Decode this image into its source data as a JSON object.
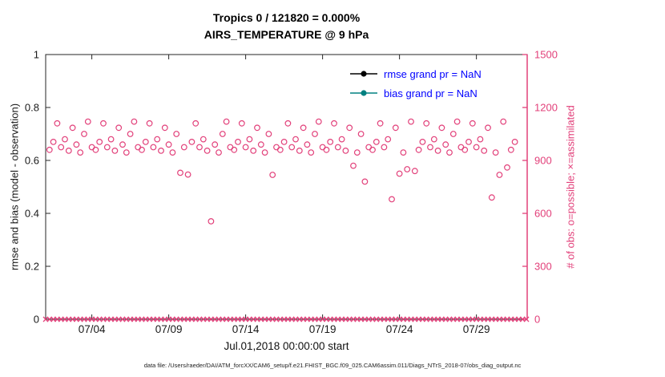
{
  "figure": {
    "title_line1": "Tropics 0 / 121820 = 0.000%",
    "title_line2": "AIRS_TEMPERATURE @ 9 hPa",
    "caption": "data file: /Users/raeder/DAI/ATM_forcXX/CAM6_setup/f.e21.FHIST_BGC.f09_025.CAM6assim.011/Diags_NTrS_2018-07/obs_diag_output.nc"
  },
  "colors": {
    "accent_pink": "#e2407a",
    "teal": "#008080",
    "legend_text_blue": "#0000ff",
    "axis_dark": "#262626"
  },
  "chart_data": {
    "type": "scatter",
    "title": "Tropics 0 / 121820 = 0.000% — AIRS_TEMPERATURE @ 9 hPa",
    "x_label": "Jul.01,2018 00:00:00 start",
    "y_left_label": "rmse and bias (model - observation)",
    "y_right_label": "# of obs: o=possible; ×=assimilated",
    "y_left_range": [
      0,
      1
    ],
    "y_left_ticks": [
      0,
      0.2,
      0.4,
      0.6,
      0.8,
      1
    ],
    "y_right_range": [
      0,
      1500
    ],
    "y_right_ticks": [
      0,
      300,
      600,
      900,
      1200,
      1500
    ],
    "x_range_days": [
      1,
      32.3
    ],
    "x_ticks": [
      {
        "day": 4,
        "label": "07/04"
      },
      {
        "day": 9,
        "label": "07/09"
      },
      {
        "day": 14,
        "label": "07/14"
      },
      {
        "day": 19,
        "label": "07/19"
      },
      {
        "day": 24,
        "label": "07/24"
      },
      {
        "day": 29,
        "label": "07/29"
      }
    ],
    "legend": [
      {
        "label": "rmse grand pr = NaN",
        "color": "#000000"
      },
      {
        "label": "bias grand pr = NaN",
        "color": "#008080"
      }
    ],
    "series": [
      {
        "name": "possible_obs",
        "marker": "circle",
        "axis": "right",
        "start_day": 1.25,
        "step_days": 0.25,
        "values": [
          960,
          1005,
          1110,
          975,
          1020,
          955,
          1085,
          990,
          945,
          1050,
          1120,
          975,
          960,
          1005,
          1110,
          975,
          1020,
          955,
          1085,
          990,
          945,
          1050,
          1120,
          975,
          960,
          1005,
          1110,
          975,
          1020,
          955,
          1085,
          990,
          945,
          1050,
          830,
          975,
          820,
          1005,
          1110,
          975,
          1020,
          955,
          555,
          990,
          945,
          1050,
          1120,
          975,
          960,
          1005,
          1110,
          975,
          1020,
          955,
          1085,
          990,
          945,
          1050,
          818,
          975,
          960,
          1005,
          1110,
          975,
          1020,
          955,
          1085,
          990,
          945,
          1050,
          1120,
          975,
          960,
          1005,
          1110,
          975,
          1020,
          955,
          1085,
          870,
          945,
          1050,
          780,
          975,
          960,
          1005,
          1110,
          975,
          1020,
          680,
          1085,
          825,
          945,
          850,
          1120,
          840,
          960,
          1005,
          1110,
          975,
          1020,
          955,
          1085,
          990,
          945,
          1050,
          1120,
          975,
          960,
          1005,
          1110,
          975,
          1020,
          955,
          1085,
          690,
          945,
          818,
          1120,
          860,
          960,
          1005
        ]
      },
      {
        "name": "assimilated_obs",
        "marker": "x",
        "axis": "right",
        "constant_value": 0,
        "step_days": 0.25
      }
    ]
  }
}
